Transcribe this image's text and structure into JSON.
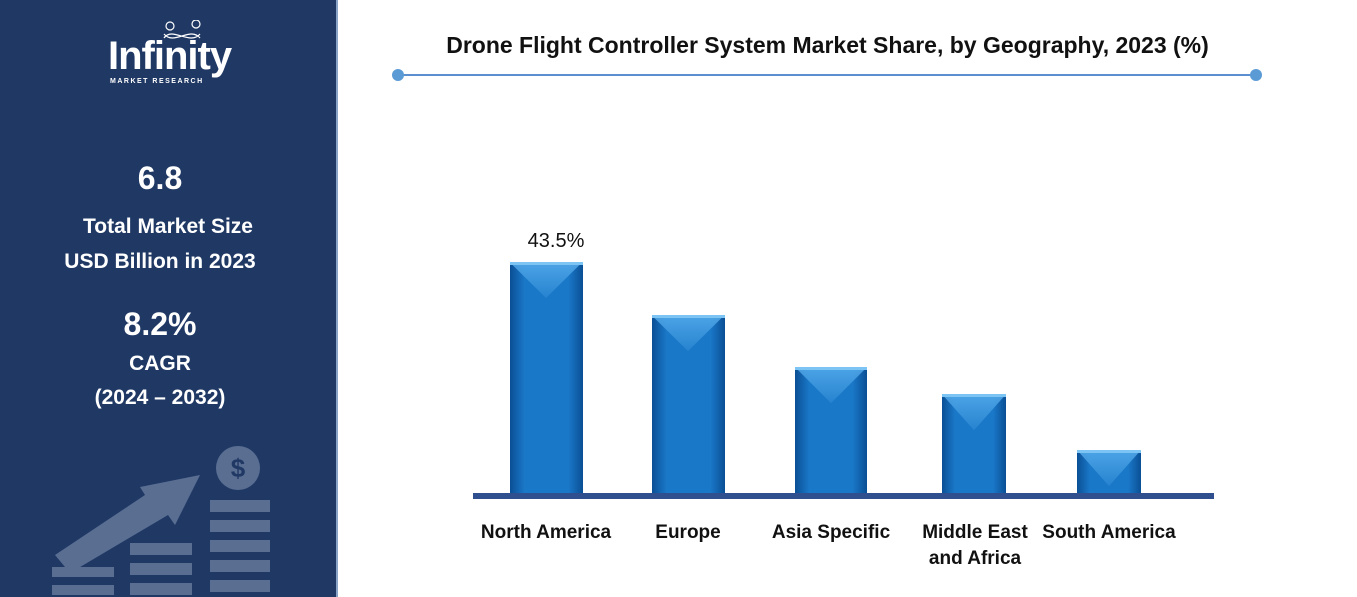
{
  "sidebar": {
    "logo": {
      "main": "Infinity",
      "sub": "MARKET RESEARCH"
    },
    "market_size_value": "6.8",
    "market_size_label_1": "Total Market Size",
    "market_size_label_2": "USD Billion in 2023",
    "cagr_value": "8.2%",
    "cagr_label": "CAGR",
    "cagr_period": "(2024 – 2032)",
    "decor_icon": "growth-chart-dollar-icon"
  },
  "colors": {
    "sidebar": "#1f3864",
    "bar": "#1a78c8",
    "baseline": "#2f4f8f",
    "title_line": "#5b9bd5"
  },
  "chart_data": {
    "type": "bar",
    "title": "Drone Flight Controller System Market Share, by Geography, 2023 (%)",
    "categories": [
      "North America",
      "Europe",
      "Asia Specific",
      "Middle East and Africa",
      "South America"
    ],
    "category_lines": [
      [
        "North America"
      ],
      [
        "Europe"
      ],
      [
        "Asia Specific"
      ],
      [
        "Middle East",
        "and Africa"
      ],
      [
        "South America"
      ]
    ],
    "values": [
      43.5,
      33.5,
      23.7,
      18.6,
      8.1
    ],
    "data_labels": [
      "43.5%",
      "",
      "",
      "",
      ""
    ],
    "ylim": [
      0,
      43.5
    ],
    "grid": false,
    "legend": "none"
  }
}
